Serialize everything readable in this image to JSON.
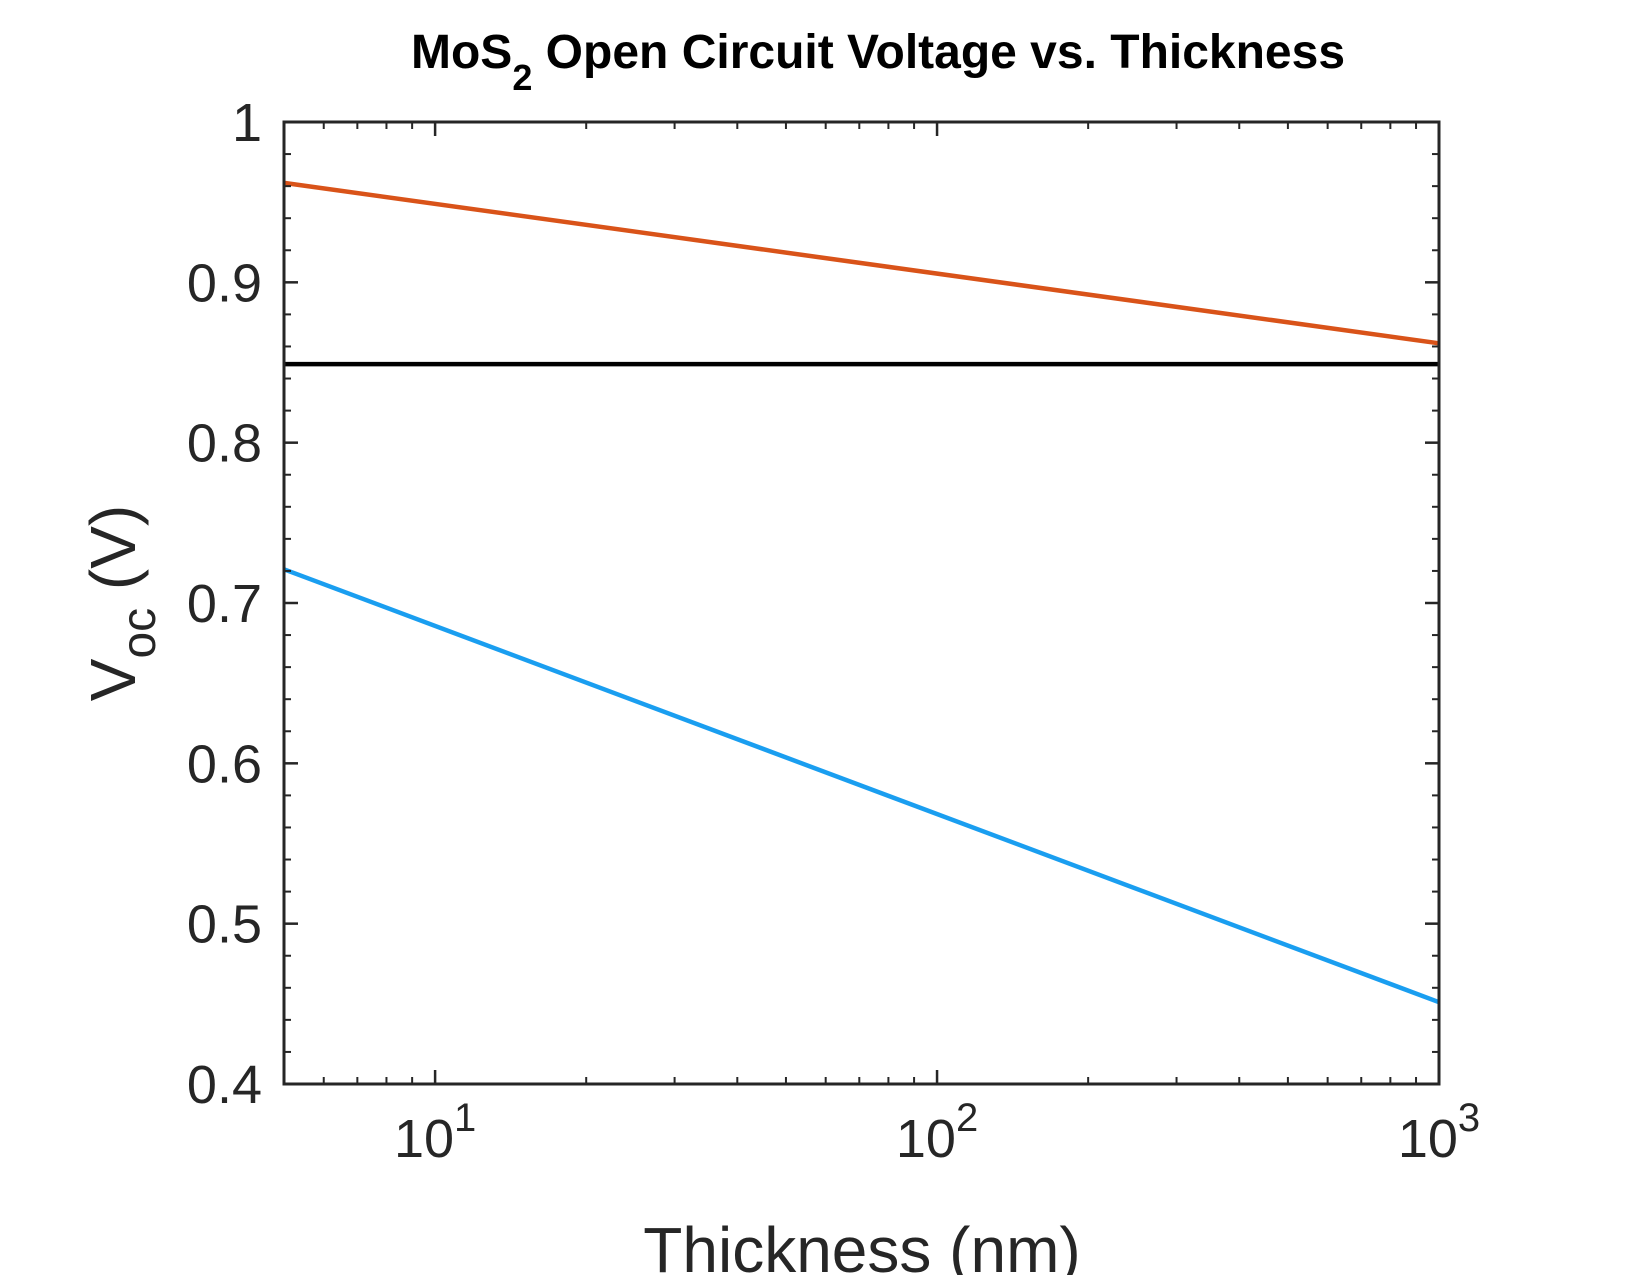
{
  "chart_data": {
    "type": "line",
    "title": {
      "prefix": "MoS",
      "subscript": "2",
      "suffix": " Open Circuit Voltage vs. Thickness"
    },
    "xlabel": "Thickness (nm)",
    "ylabel": {
      "main": "V",
      "subscript": "oc",
      "suffix": " (V)"
    },
    "x_scale": "log",
    "xlim": [
      5,
      1000
    ],
    "ylim": [
      0.4,
      1.0
    ],
    "grid": false,
    "x_ticks": [
      {
        "value": 10,
        "base": "10",
        "exponent": "1"
      },
      {
        "value": 100,
        "base": "10",
        "exponent": "2"
      },
      {
        "value": 1000,
        "base": "10",
        "exponent": "3"
      }
    ],
    "y_ticks": [
      {
        "value": 0.4,
        "label": "0.4"
      },
      {
        "value": 0.5,
        "label": "0.5"
      },
      {
        "value": 0.6,
        "label": "0.6"
      },
      {
        "value": 0.7,
        "label": "0.7"
      },
      {
        "value": 0.8,
        "label": "0.8"
      },
      {
        "value": 0.9,
        "label": "0.9"
      },
      {
        "value": 1.0,
        "label": "1"
      }
    ],
    "series": [
      {
        "color": "#D95319",
        "x": [
          5,
          1000
        ],
        "y": [
          0.962,
          0.862
        ]
      },
      {
        "color": "#000000",
        "x": [
          5,
          1000
        ],
        "y": [
          0.849,
          0.849
        ]
      },
      {
        "color": "#1A9EF0",
        "x": [
          5,
          1000
        ],
        "y": [
          0.721,
          0.451
        ]
      }
    ]
  }
}
